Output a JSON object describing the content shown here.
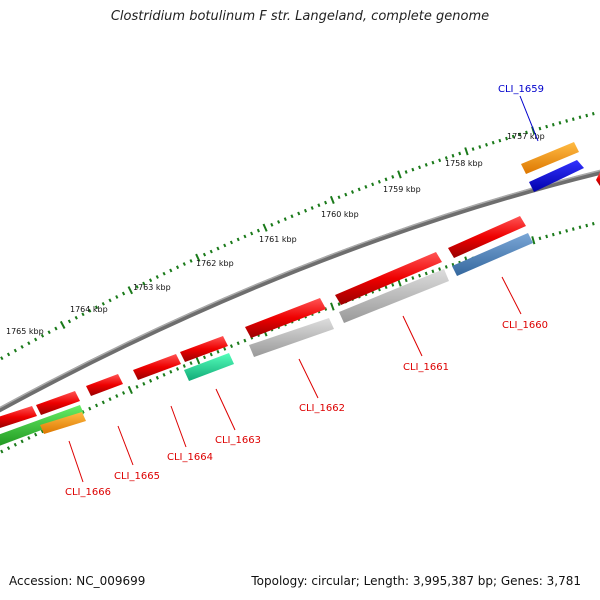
{
  "title": "Clostridium botulinum F str. Langeland, complete genome",
  "footer": {
    "accession": "Accession: NC_009699",
    "topology": "Topology: circular; Length: 3,995,387 bp; Genes: 3,781"
  },
  "scale_labels": [
    "1757 kbp",
    "1758 kbp",
    "1759 kbp",
    "1760 kbp",
    "1761 kbp",
    "1762 kbp",
    "1763 kbp",
    "1764 kbp",
    "1765 kbp"
  ],
  "gene_labels": [
    "CLI_1659",
    "CLI_1660",
    "CLI_1661",
    "CLI_1662",
    "CLI_1663",
    "CLI_1664",
    "CLI_1665",
    "CLI_1666"
  ],
  "colors": {
    "backbone": "#777777",
    "ticks": "#1a7a1a",
    "red": "#ee0000",
    "gray": "#bbbbbb",
    "orange": "#ff9900",
    "blue": "#0000ee",
    "steelblue": "#4a7fb5",
    "teal": "#22dd99",
    "green": "#33cc33",
    "label_red": "#dd0000",
    "label_blue": "#0000cc"
  }
}
